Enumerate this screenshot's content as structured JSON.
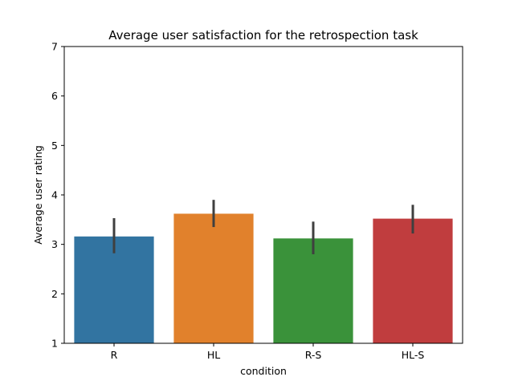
{
  "chart_data": {
    "type": "bar",
    "title": "Average user satisfaction for the retrospection task",
    "xlabel": "condition",
    "ylabel": "Average user rating",
    "categories": [
      "R",
      "HL",
      "R-S",
      "HL-S"
    ],
    "values": [
      3.16,
      3.62,
      3.12,
      3.52
    ],
    "error_low": [
      2.82,
      3.35,
      2.8,
      3.22
    ],
    "error_high": [
      3.53,
      3.9,
      3.46,
      3.8
    ],
    "colors": [
      "#3274a1",
      "#e1812c",
      "#3a923a",
      "#c03d3e"
    ],
    "ylim": [
      1,
      7
    ],
    "yticks": [
      1,
      2,
      3,
      4,
      5,
      6,
      7
    ],
    "grid": false
  }
}
